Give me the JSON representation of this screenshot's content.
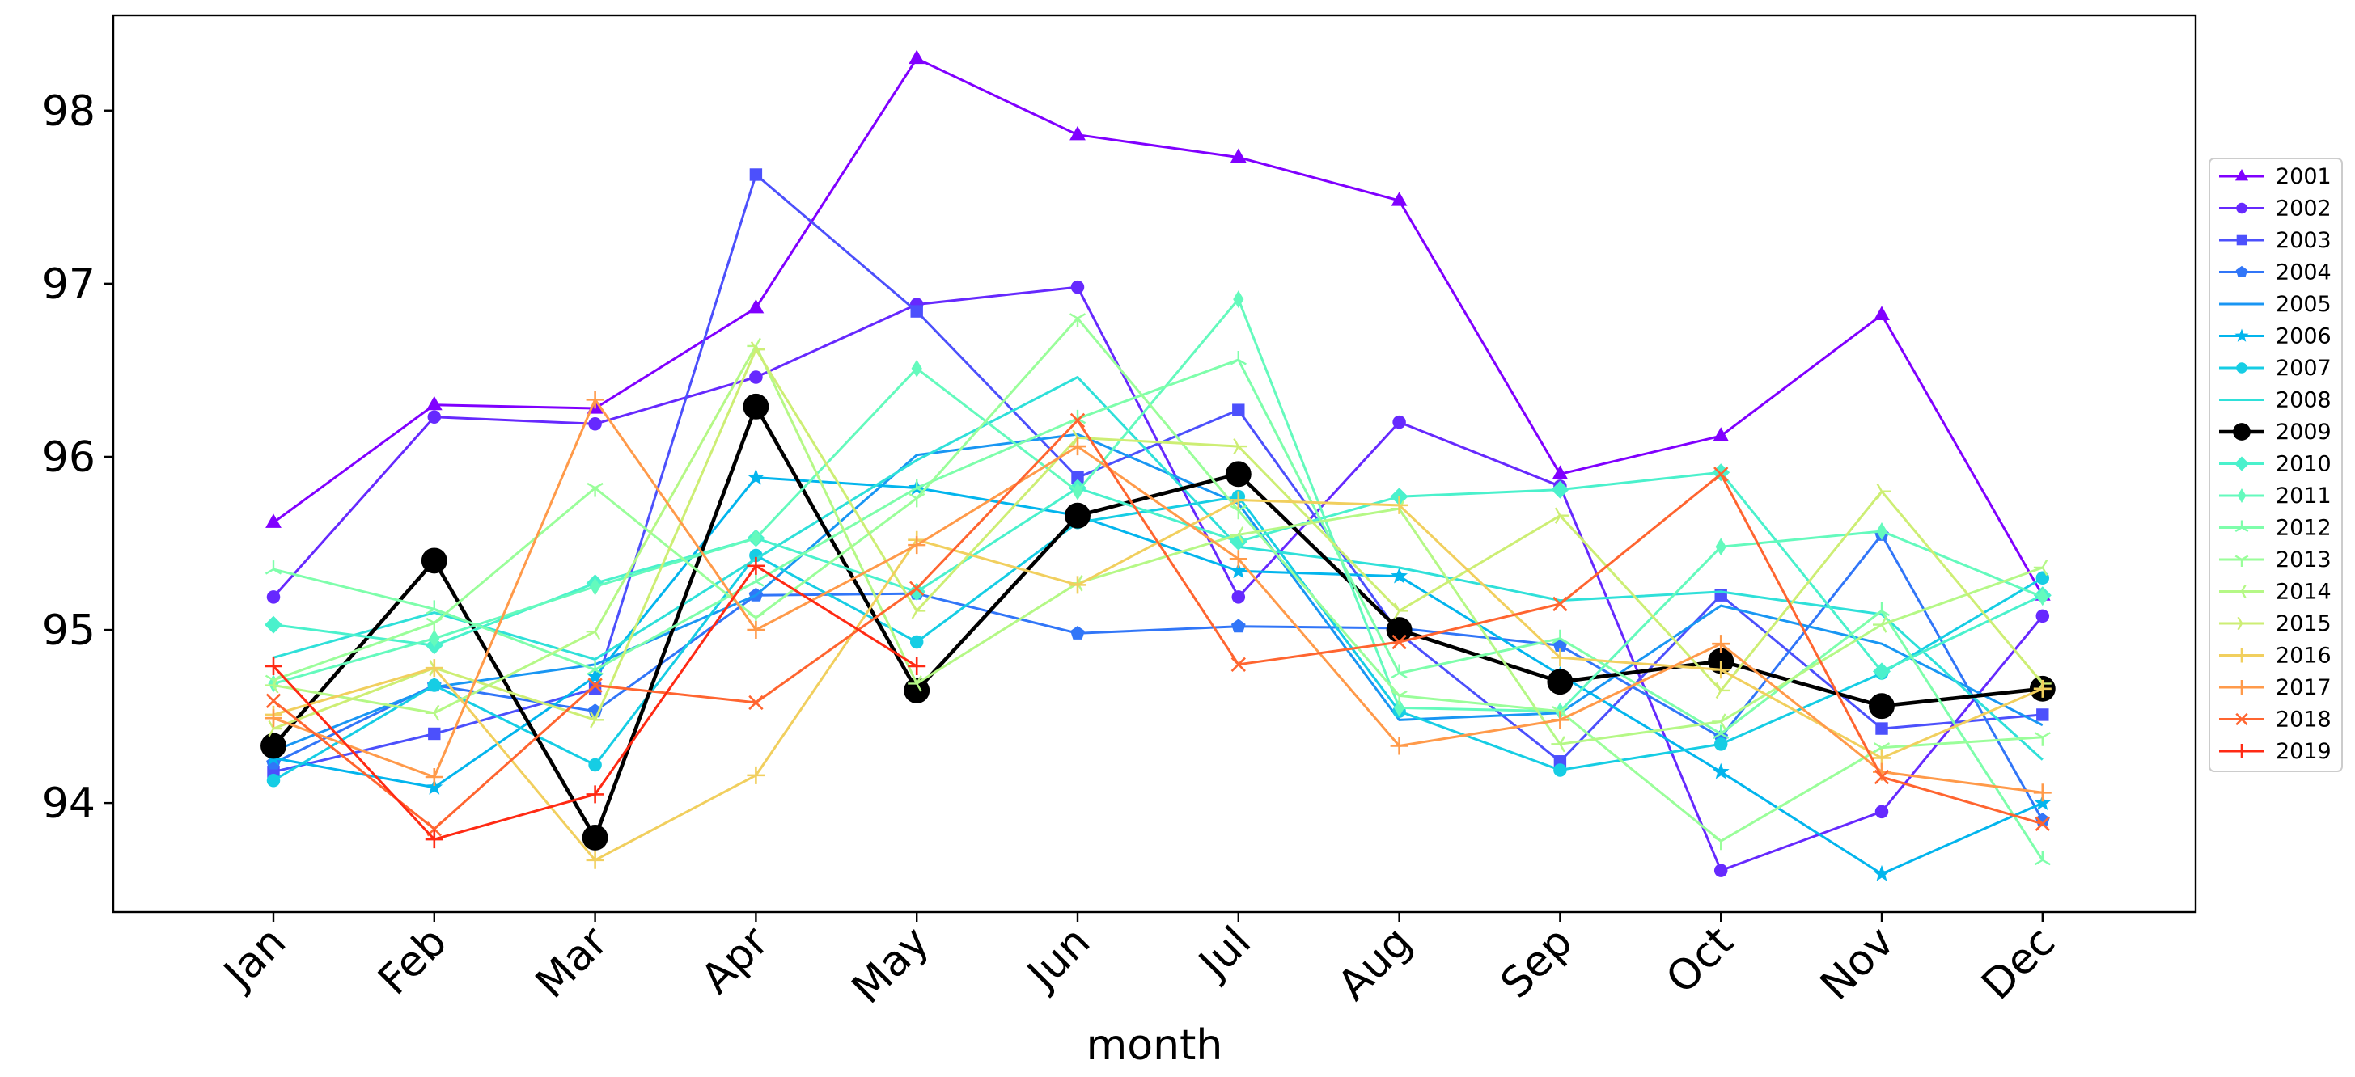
{
  "chart_data": {
    "type": "line",
    "title": "",
    "xlabel": "month",
    "ylabel": "",
    "categories": [
      "Jan",
      "Feb",
      "Mar",
      "Apr",
      "May",
      "Jun",
      "Jul",
      "Aug",
      "Sep",
      "Oct",
      "Nov",
      "Dec"
    ],
    "ylim": [
      93.37,
      98.55
    ],
    "yticks": [
      94,
      95,
      96,
      97,
      98
    ],
    "grid": false,
    "legend": "right",
    "series": [
      {
        "name": "2001",
        "color": "#8000ff",
        "marker": "triangle",
        "values": [
          95.62,
          96.3,
          96.28,
          96.86,
          98.3,
          97.86,
          97.73,
          97.48,
          95.9,
          96.12,
          96.82,
          95.2
        ]
      },
      {
        "name": "2002",
        "color": "#6629fe",
        "marker": "circle",
        "values": [
          95.19,
          96.23,
          96.19,
          96.46,
          96.88,
          96.98,
          95.19,
          96.2,
          95.83,
          93.61,
          93.95,
          95.08
        ]
      },
      {
        "name": "2003",
        "color": "#4c50fc",
        "marker": "square",
        "values": [
          94.18,
          94.4,
          94.66,
          97.63,
          96.84,
          95.88,
          96.27,
          94.98,
          94.24,
          95.2,
          94.43,
          94.51
        ]
      },
      {
        "name": "2004",
        "color": "#3176f8",
        "marker": "pentagon",
        "values": [
          94.23,
          94.68,
          94.53,
          95.2,
          95.21,
          94.98,
          95.02,
          95.01,
          94.91,
          94.38,
          95.55,
          93.9
        ]
      },
      {
        "name": "2005",
        "color": "#1996f3",
        "marker": "none",
        "values": [
          94.3,
          94.67,
          94.8,
          95.2,
          96.01,
          96.13,
          95.73,
          94.48,
          94.52,
          95.14,
          94.92,
          94.45
        ]
      },
      {
        "name": "2006",
        "color": "#03b5ed",
        "marker": "star",
        "values": [
          94.26,
          94.09,
          94.73,
          95.88,
          95.82,
          95.66,
          95.34,
          95.31,
          94.74,
          94.18,
          93.59,
          94.0
        ]
      },
      {
        "name": "2007",
        "color": "#16cde4",
        "marker": "circle",
        "values": [
          94.13,
          94.68,
          94.22,
          95.43,
          94.93,
          95.62,
          95.77,
          94.53,
          94.19,
          94.34,
          94.75,
          95.3
        ]
      },
      {
        "name": "2008",
        "color": "#2fe0d9",
        "marker": "none",
        "values": [
          94.84,
          95.1,
          94.83,
          95.41,
          95.98,
          96.46,
          95.48,
          95.36,
          95.17,
          95.22,
          95.09,
          94.25
        ]
      },
      {
        "name": "2009",
        "color": "#000000",
        "marker": "circle-large",
        "values": [
          94.33,
          95.4,
          93.8,
          96.29,
          94.65,
          95.66,
          95.9,
          95.0,
          94.7,
          94.82,
          94.56,
          94.66
        ]
      },
      {
        "name": "2010",
        "color": "#4af1cc",
        "marker": "diamond",
        "values": [
          95.03,
          94.91,
          95.27,
          95.53,
          95.22,
          95.82,
          95.51,
          95.77,
          95.81,
          95.91,
          94.76,
          95.2
        ]
      },
      {
        "name": "2011",
        "color": "#64fabd",
        "marker": "thin-diamond",
        "values": [
          94.69,
          94.95,
          95.25,
          95.53,
          96.51,
          95.8,
          96.91,
          94.55,
          94.53,
          95.48,
          95.57,
          95.19
        ]
      },
      {
        "name": "2012",
        "color": "#7efeab",
        "marker": "tri",
        "values": [
          95.35,
          95.12,
          94.77,
          95.28,
          95.82,
          96.22,
          96.56,
          94.75,
          94.95,
          94.4,
          95.11,
          93.67
        ]
      },
      {
        "name": "2013",
        "color": "#9afe9a",
        "marker": "tri-down",
        "values": [
          94.71,
          95.04,
          95.82,
          95.07,
          95.76,
          96.8,
          95.69,
          94.62,
          94.53,
          93.78,
          94.32,
          94.38
        ]
      },
      {
        "name": "2014",
        "color": "#b5f886",
        "marker": "tri-left",
        "values": [
          94.68,
          94.52,
          94.99,
          96.64,
          94.69,
          95.27,
          95.55,
          95.7,
          94.34,
          94.47,
          95.03,
          95.36
        ]
      },
      {
        "name": "2015",
        "color": "#cdee74",
        "marker": "tri-right",
        "values": [
          94.43,
          94.78,
          94.48,
          96.62,
          95.11,
          96.11,
          96.06,
          95.11,
          95.66,
          94.65,
          95.8,
          94.69
        ]
      },
      {
        "name": "2016",
        "color": "#f1cf5e",
        "marker": "plus",
        "values": [
          94.51,
          94.78,
          93.67,
          94.16,
          95.52,
          95.26,
          95.75,
          95.72,
          94.84,
          94.77,
          94.26,
          94.66
        ]
      },
      {
        "name": "2017",
        "color": "#ff9a4a",
        "marker": "plus",
        "values": [
          94.49,
          94.15,
          96.33,
          95.0,
          95.49,
          96.06,
          95.41,
          94.33,
          94.48,
          94.92,
          94.18,
          94.06
        ]
      },
      {
        "name": "2018",
        "color": "#ff6530",
        "marker": "x",
        "values": [
          94.59,
          93.85,
          94.68,
          94.58,
          95.24,
          96.21,
          94.8,
          94.93,
          95.15,
          95.9,
          94.15,
          93.88
        ]
      },
      {
        "name": "2019",
        "color": "#ff2a14",
        "marker": "plus",
        "values": [
          94.79,
          93.79,
          94.05,
          95.37,
          94.79,
          null,
          null,
          null,
          null,
          null,
          null,
          null
        ]
      }
    ]
  }
}
